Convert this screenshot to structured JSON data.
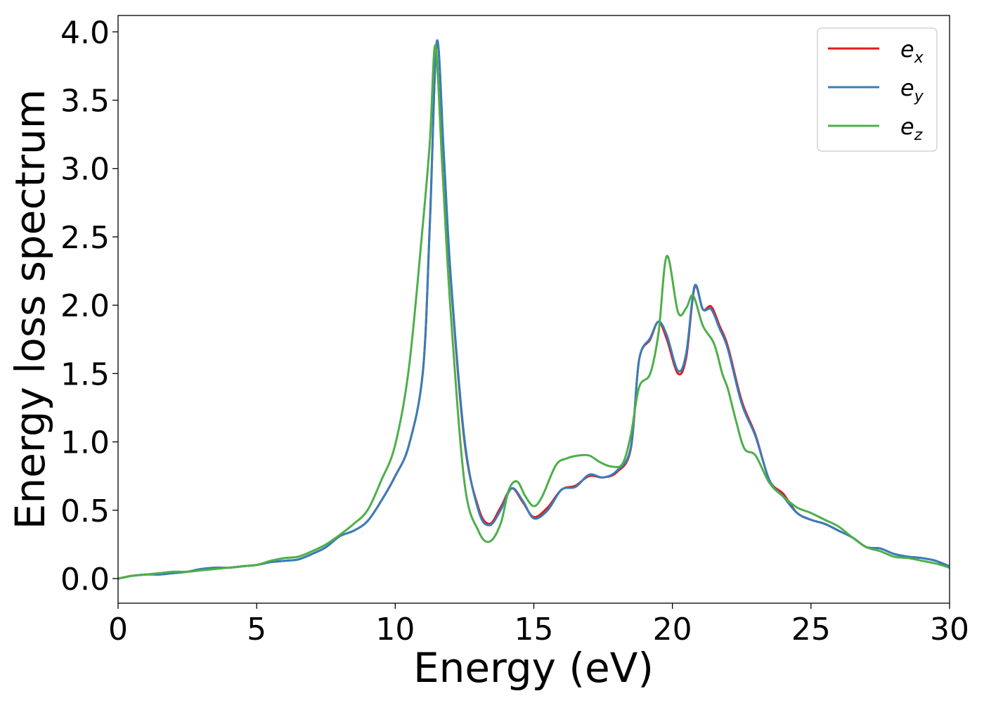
{
  "chart_data": {
    "type": "line",
    "xlabel": "Energy (eV)",
    "ylabel": "Energy loss spectrum",
    "xlim": [
      0,
      30
    ],
    "ylim": [
      -0.18,
      4.12
    ],
    "xticks": [
      0,
      5,
      10,
      15,
      20,
      25,
      30
    ],
    "xtick_labels": [
      "0",
      "5",
      "10",
      "15",
      "20",
      "25",
      "30"
    ],
    "yticks": [
      0.0,
      0.5,
      1.0,
      1.5,
      2.0,
      2.5,
      3.0,
      3.5,
      4.0
    ],
    "ytick_labels": [
      "0.0",
      "0.5",
      "1.0",
      "1.5",
      "2.0",
      "2.5",
      "3.0",
      "3.5",
      "4.0"
    ],
    "grid": false,
    "legend": {
      "position": "top-right",
      "entries": [
        {
          "base": "e",
          "sub": "x"
        },
        {
          "base": "e",
          "sub": "y"
        },
        {
          "base": "e",
          "sub": "z"
        }
      ]
    },
    "series": [
      {
        "color": "#e41a1c",
        "x": [
          0,
          0.5,
          1,
          1.5,
          2,
          2.5,
          3,
          3.5,
          4,
          4.5,
          5,
          5.5,
          6,
          6.5,
          7,
          7.5,
          8,
          8.5,
          9,
          9.5,
          10,
          10.5,
          11,
          11.25,
          11.5,
          11.75,
          12,
          12.5,
          13,
          13.4,
          13.8,
          14.2,
          14.6,
          15,
          15.5,
          16,
          16.5,
          17,
          17.5,
          18,
          18.5,
          18.8,
          19.2,
          19.5,
          19.8,
          20.2,
          20.5,
          20.8,
          21.1,
          21.4,
          21.7,
          22,
          22.5,
          23,
          23.5,
          24,
          24.5,
          25,
          25.5,
          26,
          26.5,
          27,
          27.5,
          28,
          28.5,
          29,
          29.5,
          30
        ],
        "y": [
          0.0,
          0.02,
          0.03,
          0.03,
          0.04,
          0.05,
          0.07,
          0.08,
          0.08,
          0.09,
          0.1,
          0.12,
          0.13,
          0.14,
          0.18,
          0.23,
          0.31,
          0.35,
          0.42,
          0.57,
          0.75,
          0.98,
          1.52,
          2.6,
          3.92,
          3.1,
          2.2,
          1.0,
          0.52,
          0.4,
          0.52,
          0.66,
          0.56,
          0.45,
          0.52,
          0.65,
          0.68,
          0.75,
          0.74,
          0.78,
          0.95,
          1.6,
          1.75,
          1.88,
          1.75,
          1.5,
          1.62,
          2.13,
          1.97,
          1.99,
          1.85,
          1.7,
          1.3,
          1.05,
          0.72,
          0.62,
          0.48,
          0.43,
          0.4,
          0.35,
          0.3,
          0.23,
          0.22,
          0.18,
          0.16,
          0.15,
          0.13,
          0.08
        ]
      },
      {
        "color": "#377eb8",
        "x": [
          0,
          0.5,
          1,
          1.5,
          2,
          2.5,
          3,
          3.5,
          4,
          4.5,
          5,
          5.5,
          6,
          6.5,
          7,
          7.5,
          8,
          8.5,
          9,
          9.5,
          10,
          10.5,
          11,
          11.25,
          11.5,
          11.75,
          12,
          12.5,
          13,
          13.4,
          13.8,
          14.2,
          14.6,
          15,
          15.5,
          16,
          16.5,
          17,
          17.5,
          18,
          18.5,
          18.8,
          19.2,
          19.5,
          19.8,
          20.2,
          20.5,
          20.8,
          21.1,
          21.4,
          21.7,
          22,
          22.5,
          23,
          23.5,
          24,
          24.5,
          25,
          25.5,
          26,
          26.5,
          27,
          27.5,
          28,
          28.5,
          29,
          29.5,
          30
        ],
        "y": [
          0.0,
          0.02,
          0.03,
          0.03,
          0.04,
          0.05,
          0.07,
          0.08,
          0.08,
          0.09,
          0.1,
          0.12,
          0.13,
          0.14,
          0.18,
          0.23,
          0.31,
          0.35,
          0.42,
          0.57,
          0.75,
          0.98,
          1.52,
          2.6,
          3.93,
          3.12,
          2.22,
          1.02,
          0.5,
          0.39,
          0.5,
          0.66,
          0.57,
          0.44,
          0.5,
          0.65,
          0.67,
          0.76,
          0.74,
          0.79,
          0.96,
          1.6,
          1.76,
          1.88,
          1.78,
          1.52,
          1.65,
          2.14,
          1.97,
          1.97,
          1.83,
          1.68,
          1.28,
          1.04,
          0.72,
          0.6,
          0.48,
          0.43,
          0.4,
          0.35,
          0.3,
          0.23,
          0.22,
          0.18,
          0.16,
          0.15,
          0.13,
          0.09
        ]
      },
      {
        "color": "#4daf4a",
        "x": [
          0,
          0.5,
          1,
          1.5,
          2,
          2.5,
          3,
          3.5,
          4,
          4.5,
          5,
          5.5,
          6,
          6.5,
          7,
          7.5,
          8,
          8.5,
          9,
          9.5,
          10,
          10.5,
          11,
          11.25,
          11.45,
          11.7,
          12,
          12.5,
          13,
          13.4,
          13.8,
          14.1,
          14.4,
          14.7,
          15,
          15.3,
          15.8,
          16.2,
          16.6,
          17,
          17.4,
          17.8,
          18.2,
          18.5,
          18.8,
          19.2,
          19.5,
          19.8,
          20.2,
          20.5,
          20.75,
          21.1,
          21.5,
          21.8,
          22,
          22.3,
          22.6,
          23,
          23.5,
          24,
          24.5,
          25,
          25.5,
          26,
          26.5,
          27,
          27.5,
          28,
          28.5,
          29,
          29.5,
          30
        ],
        "y": [
          0.0,
          0.02,
          0.03,
          0.04,
          0.05,
          0.05,
          0.06,
          0.07,
          0.08,
          0.09,
          0.1,
          0.13,
          0.15,
          0.16,
          0.2,
          0.25,
          0.32,
          0.4,
          0.5,
          0.72,
          0.98,
          1.55,
          2.6,
          3.2,
          3.9,
          3.0,
          1.95,
          0.7,
          0.35,
          0.27,
          0.4,
          0.65,
          0.71,
          0.6,
          0.53,
          0.6,
          0.83,
          0.88,
          0.9,
          0.9,
          0.85,
          0.82,
          0.84,
          1.05,
          1.4,
          1.5,
          1.8,
          2.36,
          1.95,
          1.98,
          2.07,
          1.85,
          1.72,
          1.5,
          1.39,
          1.15,
          0.95,
          0.9,
          0.7,
          0.6,
          0.52,
          0.48,
          0.43,
          0.38,
          0.3,
          0.23,
          0.2,
          0.16,
          0.15,
          0.13,
          0.11,
          0.08
        ]
      }
    ]
  }
}
